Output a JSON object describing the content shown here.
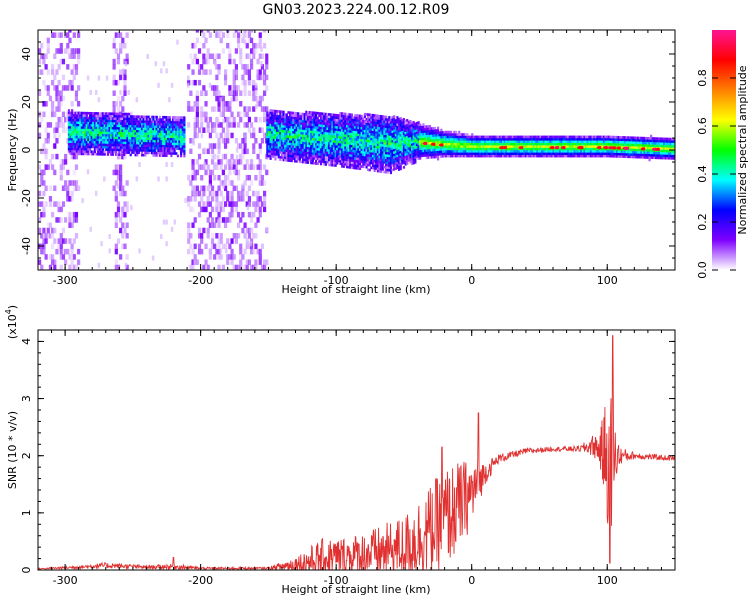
{
  "figure_title": "GN03.2023.224.00.12.R09",
  "chart_data": [
    {
      "type": "heatmap",
      "title": "GN03.2023.224.00.12.R09",
      "xlabel": "Height of straight line (km)",
      "ylabel": "Frequency (Hz)",
      "xlim": [
        -320,
        150
      ],
      "ylim": [
        -50,
        50
      ],
      "x_ticks": [
        -300,
        -200,
        -100,
        0,
        100
      ],
      "y_ticks": [
        -40,
        -20,
        0,
        20,
        40
      ],
      "colorbar": {
        "label": "Normalized spectral amplitude",
        "range": [
          0,
          1
        ],
        "ticks": [
          0.0,
          0.2,
          0.4,
          0.6,
          0.8
        ],
        "colormap": [
          "#ffffff",
          "#7f00ff",
          "#0000ff",
          "#00ffff",
          "#00ff00",
          "#ffff00",
          "#ff7f00",
          "#ff0000",
          "#ff1493"
        ]
      },
      "features": {
        "noise_bands_x_km": [
          [
            -320,
            -290
          ],
          [
            -265,
            -255
          ],
          [
            -210,
            -152
          ]
        ],
        "signal_band": {
          "x_km": [
            -295,
            -212,
            -150,
            -100,
            -60,
            -40,
            -20,
            0,
            50,
            100,
            150
          ],
          "center_hz": [
            7,
            5,
            6,
            4,
            2,
            3,
            2,
            1,
            1,
            1,
            0
          ],
          "half_width_hz": [
            6,
            5,
            7,
            8,
            9,
            5,
            3,
            2,
            2,
            2,
            2
          ]
        }
      }
    },
    {
      "type": "line",
      "xlabel": "Height of straight line (km)",
      "ylabel": "SNR (10 * v/v)",
      "y_multiplier_label": "(x10",
      "y_multiplier_exp": "4",
      "y_multiplier_close": ")",
      "xlim": [
        -320,
        150
      ],
      "ylim": [
        0,
        4.2
      ],
      "x_ticks": [
        -300,
        -200,
        -100,
        0,
        100
      ],
      "y_ticks": [
        0,
        1,
        2,
        3,
        4
      ],
      "series": [
        {
          "color": "#e03030",
          "envelope": {
            "x": [
              -320,
              -290,
              -270,
              -240,
              -220,
              -200,
              -150,
              -130,
              -110,
              -90,
              -70,
              -50,
              -40,
              -30,
              -20,
              -10,
              0,
              10,
              20,
              40,
              60,
              80,
              90,
              95,
              100,
              103,
              106,
              110,
              120,
              150
            ],
            "y_base": [
              0.02,
              0.05,
              0.08,
              0.05,
              0.06,
              0.03,
              0.03,
              0.1,
              0.2,
              0.25,
              0.3,
              0.4,
              0.55,
              0.7,
              0.9,
              1.1,
              1.35,
              1.7,
              1.95,
              2.08,
              2.12,
              2.12,
              2.18,
              2.1,
              2.0,
              1.95,
              2.0,
              2.0,
              2.0,
              1.95
            ],
            "y_spread": [
              0.01,
              0.03,
              0.05,
              0.03,
              0.05,
              0.02,
              0.02,
              0.15,
              0.35,
              0.35,
              0.45,
              0.55,
              0.7,
              0.8,
              0.9,
              0.8,
              0.6,
              0.2,
              0.08,
              0.05,
              0.04,
              0.05,
              0.2,
              0.35,
              1.2,
              1.4,
              0.5,
              0.15,
              0.06,
              0.04
            ]
          },
          "spikes": [
            {
              "x": -220,
              "y": 0.22
            },
            {
              "x": -22,
              "y": 2.15
            },
            {
              "x": 5,
              "y": 2.75
            },
            {
              "x": 102,
              "y": 0.12
            },
            {
              "x": 104,
              "y": 4.1
            }
          ]
        }
      ]
    }
  ]
}
